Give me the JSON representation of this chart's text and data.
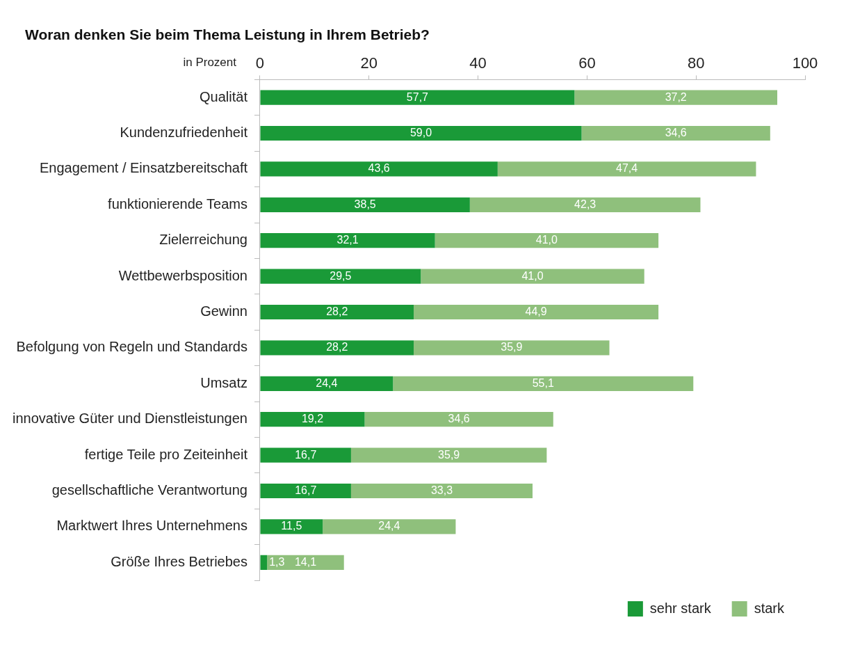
{
  "chart_data": {
    "type": "bar",
    "orientation": "horizontal",
    "stacked": true,
    "title": "Woran denken Sie beim Thema Leistung in Ihrem Betrieb?",
    "xlabel": "in Prozent",
    "categories": [
      "Qualität",
      "Kundenzufriedenheit",
      "Engagement / Einsatzbereitschaft",
      "funktionierende Teams",
      "Zielerreichung",
      "Wettbewerbsposition",
      "Gewinn",
      "Befolgung von Regeln und Standards",
      "Umsatz",
      "innovative Güter und Dienstleistungen",
      "fertige Teile pro Zeiteinheit",
      "gesellschaftliche Verantwortung",
      "Marktwert Ihres Unternehmens",
      "Größe Ihres Betriebes"
    ],
    "series": [
      {
        "name": "sehr stark",
        "color": "#1a9a38",
        "values": [
          57.7,
          59.0,
          43.6,
          38.5,
          32.1,
          29.5,
          28.2,
          28.2,
          24.4,
          19.2,
          16.7,
          16.7,
          11.5,
          1.3
        ],
        "value_labels": [
          "57,7",
          "59,0",
          "43,6",
          "38,5",
          "32,1",
          "29,5",
          "28,2",
          "28,2",
          "24,4",
          "19,2",
          "16,7",
          "16,7",
          "11,5",
          "1,3"
        ]
      },
      {
        "name": "stark",
        "color": "#8fc07c",
        "values": [
          37.2,
          34.6,
          47.4,
          42.3,
          41.0,
          41.0,
          44.9,
          35.9,
          55.1,
          34.6,
          35.9,
          33.3,
          24.4,
          14.1
        ],
        "value_labels": [
          "37,2",
          "34,6",
          "47,4",
          "42,3",
          "41,0",
          "41,0",
          "44,9",
          "35,9",
          "55,1",
          "34,6",
          "35,9",
          "33,3",
          "24,4",
          "14,1"
        ]
      }
    ],
    "xlim": [
      0,
      100
    ],
    "xticks": [
      0,
      20,
      40,
      60,
      80,
      100
    ],
    "grid": false,
    "legend": "bottom right"
  }
}
